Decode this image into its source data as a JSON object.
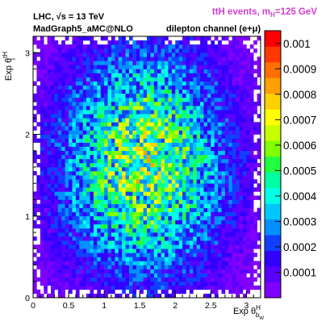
{
  "chart_data": {
    "type": "heatmap",
    "header_right": "ttH events, m",
    "header_right_sub": "H",
    "header_right_tail": "=125 GeV",
    "header_color": "#d23fd2",
    "line1": "LHC, √s = 13 TeV",
    "line2_left": "MadGraph5_aMC@NLO",
    "line2_right": "dilepton channel (e+μ)",
    "xlabel_main": "Exp θ",
    "xlabel_sup": "H",
    "xlabel_sub": "b",
    "xlabel_subsub": "W",
    "ylabel_main": "Exp θ",
    "ylabel_sup": "tH",
    "ylabel_sub": "l",
    "xlim": [
      0,
      3.2
    ],
    "ylim": [
      0,
      3.2
    ],
    "x_ticks": [
      0,
      0.5,
      1,
      1.5,
      2,
      2.5,
      3
    ],
    "x_tick_labels": [
      "0",
      "0.5",
      "1",
      "1.5",
      "2",
      "2.5",
      "3"
    ],
    "y_ticks": [
      0,
      1,
      2,
      3
    ],
    "y_tick_labels": [
      "0",
      "1",
      "2",
      "3"
    ],
    "zlim": [
      0,
      0.00105
    ],
    "z_ticks": [
      0.0001,
      0.0002,
      0.0003,
      0.0004,
      0.0005,
      0.0006,
      0.0007,
      0.0008,
      0.0009,
      0.001
    ],
    "z_tick_labels": [
      "0.0001",
      "0.0002",
      "0.0003",
      "0.0004",
      "0.0005",
      "0.0006",
      "0.0007",
      "0.0008",
      "0.0009",
      "0.001"
    ],
    "bins_x": 64,
    "bins_y": 64,
    "density_model": {
      "description": "approximate: broad peak near x≈1.5, y≈1.6, falling toward plot edges",
      "peak": 0.00055,
      "center_x": 1.55,
      "center_y": 1.65,
      "sigma_x": 0.85,
      "sigma_y": 1.0
    },
    "palette": [
      "#8000ff",
      "#5a00ff",
      "#3300ff",
      "#1040ff",
      "#0090ff",
      "#00c8ff",
      "#00ffe6",
      "#00ffa0",
      "#20ff40",
      "#80ff00",
      "#c8ff00",
      "#ffff00",
      "#ffd000",
      "#ffa000",
      "#ff7000",
      "#ff3800",
      "#ff0000"
    ],
    "grid": false
  }
}
